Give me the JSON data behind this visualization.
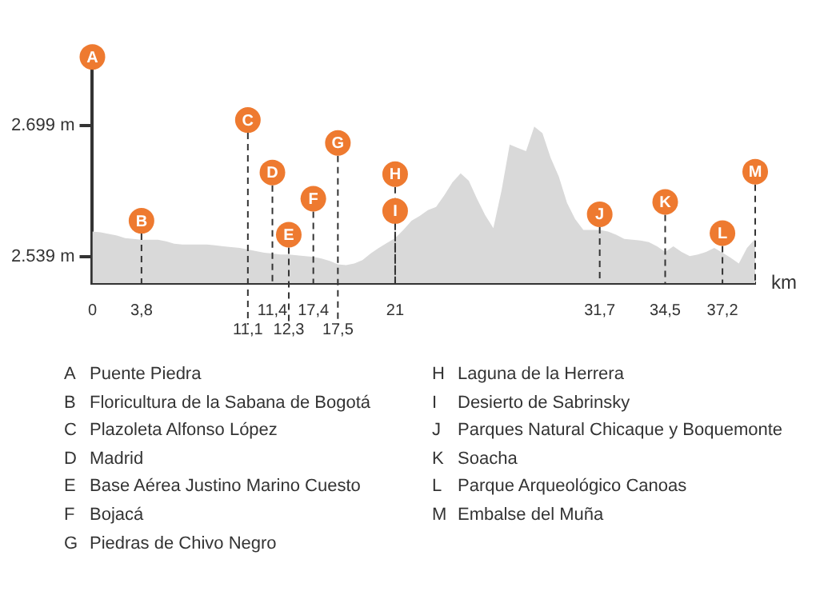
{
  "chart_data": {
    "type": "area",
    "xlabel": "km",
    "categories": [
      "0",
      null,
      null,
      null,
      null,
      null,
      "3,8",
      null,
      null,
      null,
      null,
      null,
      null,
      null,
      null,
      null,
      null,
      null,
      null,
      "11,1",
      null,
      null,
      "11,4",
      null,
      "12,3",
      null,
      null,
      "17,4",
      null,
      null,
      "17,5",
      null,
      null,
      null,
      null,
      null,
      null,
      "21",
      null,
      null,
      null,
      null,
      null,
      null,
      null,
      null,
      null,
      null,
      null,
      null,
      null,
      null,
      null,
      null,
      null,
      null,
      null,
      null,
      null,
      null,
      null,
      null,
      "31,7",
      null,
      null,
      null,
      null,
      null,
      null,
      null,
      "34,5",
      null,
      null,
      null,
      null,
      null,
      null,
      "37,2",
      null,
      null,
      null,
      null
    ],
    "series": [
      {
        "color": "#d9d9d9",
        "values": [
          2570,
          2569,
          2567,
          2565,
          2562,
          2561,
          2560,
          2560,
          2560,
          2558,
          2555,
          2554,
          2554,
          2554,
          2554,
          2553,
          2552,
          2551,
          2550,
          2548,
          2546,
          2544,
          2543,
          2542,
          2542,
          2541,
          2540,
          2539,
          2537,
          2534,
          2530,
          2529,
          2531,
          2535,
          2543,
          2550,
          2556,
          2562,
          2572,
          2583,
          2589,
          2596,
          2600,
          2614,
          2630,
          2641,
          2632,
          2610,
          2590,
          2574,
          2620,
          2676,
          2672,
          2668,
          2698,
          2690,
          2660,
          2637,
          2605,
          2585,
          2572,
          2572,
          2572,
          2570,
          2566,
          2561,
          2560,
          2559,
          2557,
          2552,
          2545,
          2552,
          2545,
          2540,
          2542,
          2545,
          2550,
          2544,
          2538,
          2531,
          2550,
          2561
        ]
      }
    ],
    "ylim": [
      2507,
      2790
    ],
    "yticks": [
      {
        "value": 2539,
        "label": "2.539 m"
      },
      {
        "value": 2699,
        "label": "2.699 m"
      }
    ],
    "annotations": [
      {
        "text": "A",
        "x": "0",
        "y": 2783
      },
      {
        "text": "B",
        "x": "3,8",
        "y": 2583
      },
      {
        "text": "C",
        "x": "11,1",
        "y": 2706
      },
      {
        "text": "D",
        "x": "11,4",
        "y": 2642
      },
      {
        "text": "E",
        "x": "12,3",
        "y": 2566
      },
      {
        "text": "F",
        "x": "17,4",
        "y": 2610
      },
      {
        "text": "G",
        "x": "17,5",
        "y": 2678
      },
      {
        "text": "H",
        "x": "21",
        "y": 2640
      },
      {
        "text": "I",
        "x": "21",
        "y": 2595
      },
      {
        "text": "J",
        "x": "31,7",
        "y": 2591
      },
      {
        "text": "K",
        "x": "34,5",
        "y": 2606
      },
      {
        "text": "L",
        "x": "37,2",
        "y": 2568
      },
      {
        "text": "M",
        "y": 2643
      },
      "A Puente Piedra",
      "B Floricultura de la Sabana de Bogotá",
      "C Plazoleta Alfonso López",
      "D Madrid",
      "E Base Aérea Justino Marino Cuesto",
      "F Bojacá",
      "G Piedras de Chivo Negro",
      "H Laguna de la Herrera",
      "I Desierto de Sabrinsky",
      "J Parques Natural Chicaque y Boquemonte",
      "K Soacha",
      "L Parque Arqueológico Canoas",
      "M Embalse del Muña"
    ]
  }
}
